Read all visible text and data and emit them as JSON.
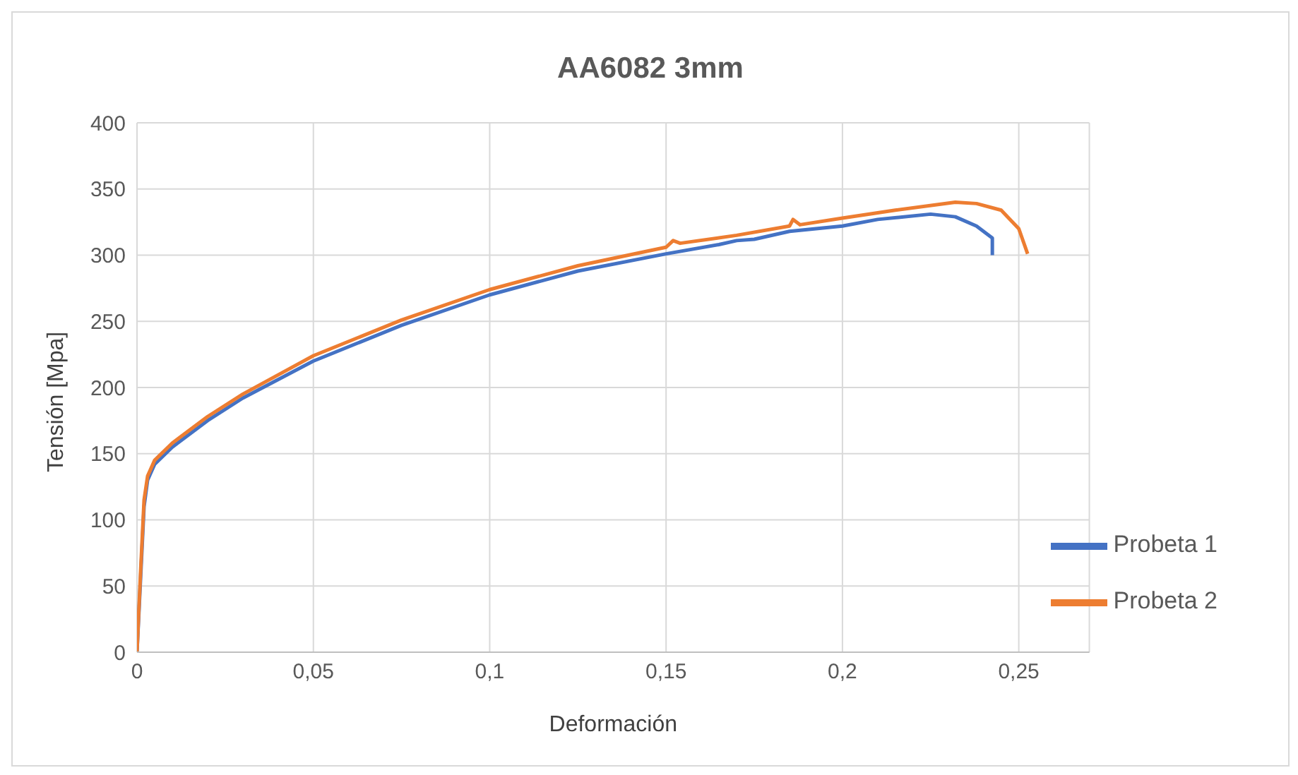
{
  "chart_data": {
    "type": "line",
    "title": "AA6082 3mm",
    "xlabel": "Deformación",
    "ylabel": "Tensión [Mpa]",
    "xlim": [
      0,
      0.27
    ],
    "xticks": [
      {
        "value": 0,
        "label": "0"
      },
      {
        "value": 0.05,
        "label": "0,05"
      },
      {
        "value": 0.1,
        "label": "0,1"
      },
      {
        "value": 0.15,
        "label": "0,15"
      },
      {
        "value": 0.2,
        "label": "0,2"
      },
      {
        "value": 0.25,
        "label": "0,25"
      }
    ],
    "ylim": [
      0,
      400
    ],
    "yticks": [
      0,
      50,
      100,
      150,
      200,
      250,
      300,
      350,
      400
    ],
    "grid": true,
    "legend": "bottom right",
    "marker": "none",
    "line_style": "solid",
    "series": [
      {
        "name": "Probeta 1",
        "color": "#4472c4",
        "x": [
          0,
          0.002,
          0.003,
          0.005,
          0.01,
          0.02,
          0.03,
          0.05,
          0.075,
          0.1,
          0.125,
          0.15,
          0.165,
          0.17,
          0.175,
          0.185,
          0.2,
          0.21,
          0.225,
          0.232,
          0.238,
          0.2425,
          0.2425
        ],
        "values": [
          0,
          110,
          130,
          142,
          155,
          175,
          192,
          220,
          247,
          270,
          288,
          301,
          308,
          311,
          312,
          318,
          322,
          327,
          331,
          329,
          322,
          313,
          300
        ]
      },
      {
        "name": "Probeta 2",
        "color": "#ed7d31",
        "x": [
          0,
          0.001,
          0.002,
          0.003,
          0.005,
          0.01,
          0.02,
          0.03,
          0.05,
          0.075,
          0.1,
          0.125,
          0.15,
          0.152,
          0.154,
          0.17,
          0.185,
          0.186,
          0.188,
          0.2,
          0.215,
          0.232,
          0.238,
          0.245,
          0.25,
          0.2525
        ],
        "values": [
          0,
          60,
          115,
          133,
          145,
          158,
          178,
          195,
          224,
          251,
          274,
          292,
          306,
          311,
          309,
          315,
          322,
          327,
          323,
          328,
          334,
          340,
          339,
          334,
          320,
          301
        ]
      }
    ]
  }
}
